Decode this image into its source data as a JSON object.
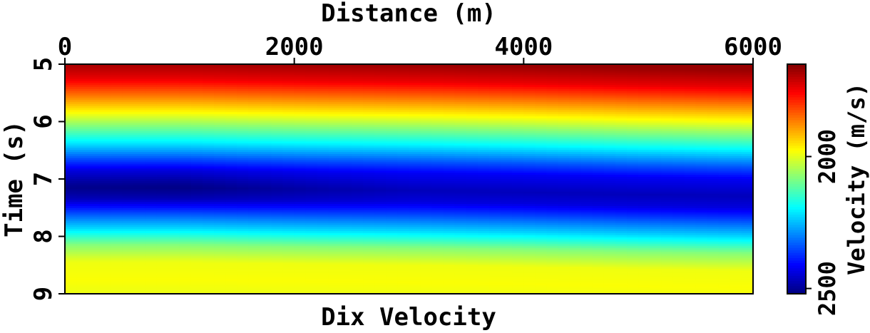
{
  "chart_data": {
    "type": "heatmap",
    "title": "Dix Velocity",
    "xlabel": "Distance (m)",
    "ylabel": "Time (s)",
    "xlim": [
      0,
      6000
    ],
    "ylim": [
      5,
      9
    ],
    "x_axis_position": "top",
    "y_axis_inverted": true,
    "xticks": [
      "0",
      "2000",
      "4000",
      "6000"
    ],
    "yticks": [
      "5",
      "6",
      "7",
      "8",
      "9"
    ],
    "colorbar": {
      "label": "Velocity (m/s)",
      "ticks": [
        "2000",
        "2500"
      ],
      "range": [
        1650,
        2520
      ],
      "colormap": "jet",
      "reversed": true
    },
    "velocity_profile": {
      "time": [
        5.0,
        5.3,
        5.6,
        5.9,
        6.1,
        6.4,
        6.7,
        6.9,
        7.2,
        7.4,
        7.6,
        7.9,
        8.2,
        8.5,
        8.8,
        9.0
      ],
      "velocity": [
        1670,
        1740,
        1860,
        1980,
        2070,
        2200,
        2340,
        2420,
        2470,
        2440,
        2360,
        2230,
        2080,
        1990,
        1980,
        1990
      ]
    },
    "lateral_variation": {
      "distance": [
        0,
        1000,
        2000,
        3000,
        4000,
        5000,
        6000
      ],
      "time_shift_s": [
        -0.05,
        -0.05,
        -0.02,
        0.0,
        0.03,
        0.07,
        0.1
      ],
      "peak_velocity_offset": [
        40,
        45,
        20,
        0,
        0,
        0,
        0
      ]
    }
  }
}
